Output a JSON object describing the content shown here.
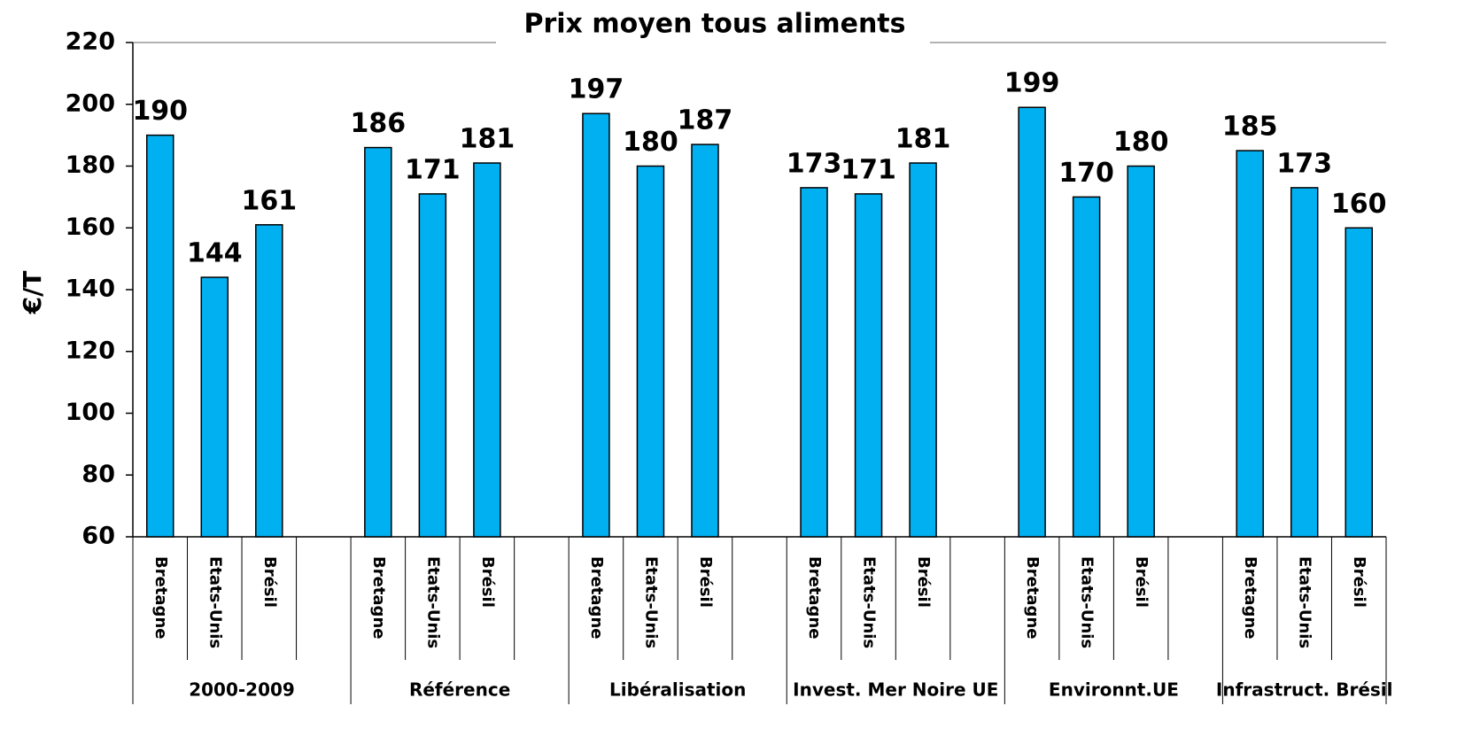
{
  "chart_data": {
    "type": "bar",
    "title": "Prix moyen tous aliments",
    "y_label": "€/T",
    "categories": [
      "Bretagne",
      "Etats-Unis",
      "Brésil",
      null,
      "Bretagne",
      "Etats-Unis",
      "Brésil",
      null,
      "Bretagne",
      "Etats-Unis",
      "Brésil",
      null,
      "Bretagne",
      "Etats-Unis",
      "Brésil",
      null,
      "Bretagne",
      "Etats-Unis",
      "Brésil",
      null,
      "Bretagne",
      "Etats-Unis",
      "Brésil"
    ],
    "values": [
      190,
      144,
      161,
      null,
      186,
      171,
      181,
      null,
      197,
      180,
      187,
      null,
      173,
      171,
      181,
      null,
      199,
      170,
      180,
      null,
      185,
      173,
      160
    ],
    "groups": [
      "2000-2009",
      "Référence",
      "Libéralisation",
      "Invest. Mer Noire UE",
      "Environnt.UE",
      "Infrastruct. Brésil"
    ],
    "color": "#00b0f0",
    "ylim": [
      60,
      220
    ],
    "yticks": [
      60,
      80,
      100,
      120,
      140,
      160,
      180,
      200,
      220
    ],
    "grid": false
  }
}
